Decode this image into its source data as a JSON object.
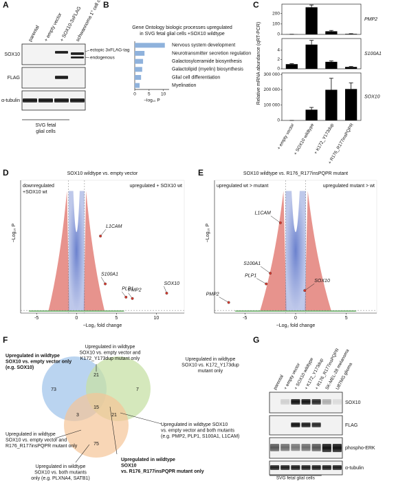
{
  "panel_letters": [
    "A",
    "B",
    "C",
    "D",
    "E",
    "F",
    "G"
  ],
  "blot_a": {
    "lanes": [
      "parental",
      "+ empty vector",
      "+ SOX10-3xFLAG",
      "schwannoma 1° cell culture"
    ],
    "rows": [
      "SOX10",
      "FLAG",
      "α-tubulin"
    ],
    "annotations": [
      "ectopic 3xFLAG-tag",
      "endogenous"
    ],
    "footer": [
      "SVG fetal",
      "glial cells"
    ]
  },
  "chart_data": [
    {
      "type": "bar",
      "title": [
        "Gene Ontology biologic processes upregulated",
        "in SVG fetal glial cells +SOX10 wildtype"
      ],
      "categories": [
        "Nervous system development",
        "Neurotransmitter secretion regulation",
        "Galactosylceramide biosynthesis",
        "Galactolipid (myelin) biosynthesis",
        "Glial cell differentiation",
        "Myelination"
      ],
      "values": [
        10.5,
        3.4,
        2.9,
        2.6,
        2.2,
        1.7
      ],
      "color": "#8fb2dc",
      "xlim": [
        0,
        12
      ],
      "xticks": [
        0,
        5,
        10
      ],
      "x_label": "−log₁₀ P"
    },
    {
      "type": "bar",
      "y_label": "Relative mRNA abundance (qRT-PCR)",
      "categories": [
        "+ empty vector",
        "+ SOX10 wildtype",
        "+ K172_Y173dup",
        "+ R176_R177insPQPR"
      ],
      "color": "#000000",
      "panels": [
        {
          "gene": "PMP2",
          "values": [
            1,
            260,
            30,
            5
          ],
          "errors": [
            0.5,
            22,
            8,
            2
          ],
          "ylim": [
            0,
            290
          ],
          "yticks": [
            0,
            100,
            200
          ]
        },
        {
          "gene": "S100A1",
          "values": [
            1,
            5.2,
            1.5,
            0.4
          ],
          "errors": [
            0.1,
            0.9,
            0.2,
            0.1
          ],
          "ylim": [
            0,
            6.5
          ],
          "yticks": [
            0,
            2,
            4
          ]
        },
        {
          "gene": "SOX10",
          "values": [
            0,
            70000,
            200000,
            205000
          ],
          "errors": [
            0,
            15000,
            75000,
            40000
          ],
          "ylim": [
            0,
            310000
          ],
          "yticks": [
            0,
            {
              "value": 100000,
              "label": "100 000"
            },
            {
              "value": 200000,
              "label": "200 000"
            },
            {
              "value": 300000,
              "label": "300 000"
            }
          ]
        }
      ]
    },
    {
      "type": "scatter",
      "title": "SOX10 wildtype vs. empty vector",
      "annotations": [
        [
          "downregulated",
          "+SOX10 wt"
        ],
        [
          "upregulated + SOX10 wt"
        ]
      ],
      "x_label": "−Log₂ fold change",
      "y_label": "−Log₁₀ P",
      "xlim": [
        -7,
        13.5
      ],
      "ylim": [
        0,
        100
      ],
      "xticks": [
        -5,
        0,
        5,
        10
      ],
      "vlines": [
        -1,
        1
      ],
      "hline": 2,
      "genes": [
        {
          "label": "L1CAM",
          "x": 3.0,
          "y": 58
        },
        {
          "label": "S100A1",
          "x": 3.6,
          "y": 22
        },
        {
          "label": "PLP1",
          "x": 6.2,
          "y": 12
        },
        {
          "label": "PMP2",
          "x": 7.0,
          "y": 11
        },
        {
          "label": "SOX10",
          "x": 11.3,
          "y": 15
        }
      ]
    },
    {
      "type": "scatter",
      "title": "SOX10 wildtype vs. R176_R177insPQPR mutant",
      "annotations": [
        [
          "upregulated wt > mutant"
        ],
        [
          "upregulated mutant > wt"
        ]
      ],
      "x_label": "−Log₂ fold change",
      "y_label": "−Log₁₀ P",
      "xlim": [
        -8,
        8
      ],
      "ylim": [
        0,
        100
      ],
      "xticks": [
        -5,
        0,
        5
      ],
      "vlines": [
        -1,
        1
      ],
      "hline": 2,
      "genes": [
        {
          "label": "L1CAM",
          "x": -1.5,
          "y": 68
        },
        {
          "label": "S100A1",
          "x": -2.5,
          "y": 30
        },
        {
          "label": "PLP1",
          "x": -2.9,
          "y": 22
        },
        {
          "label": "PMP2",
          "x": -6.6,
          "y": 8
        },
        {
          "label": "SOX10",
          "x": 0.9,
          "y": 17
        }
      ]
    }
  ],
  "venn": {
    "regions": [
      {
        "count": 73,
        "label": [
          "Upregulated in wildtype",
          "SOX10 vs. empty vector only",
          "(e.g. SOX10)"
        ]
      },
      {
        "count": 21,
        "label": [
          "Upregulated in wildtype",
          "SOX10 vs. empty vector and",
          "K172_Y173dup mutant only"
        ]
      },
      {
        "count": 7,
        "label": [
          "Upregulated in wildtype",
          "SOX10 vs. K172_Y173dup",
          "mutant only"
        ]
      },
      {
        "count": 3,
        "label": [
          "Upregulated in wildtype",
          "SOX10 vs. empty vector and",
          "R176_R177insPQPR mutant only"
        ]
      },
      {
        "count": 15,
        "label": [
          "Upregulated in wildtype SOX10",
          "vs. empty vector and both mutants",
          "(e.g. PMP2, PLP1, S100A1, L1CAM)"
        ]
      },
      {
        "count": 21,
        "label": [
          "Upregulated in wildtype",
          "SOX10 vs. both mutants",
          "only (e.g. PLXNA4, SATB1)"
        ]
      },
      {
        "count": 75,
        "label": [
          "Upregulated in wildtype",
          "SOX10",
          "vs. R176_R177insPQPR mutant only"
        ]
      }
    ]
  },
  "blot_g": {
    "lanes": [
      "parental",
      "+ empty vector",
      "+ SOX10 wildtype",
      "+ K172_Y173dup",
      "+ R176_R177insPQPR",
      "SK-MEL-28 melanoma",
      "U87MG glioma"
    ],
    "rows": [
      "SOX10",
      "FLAG",
      "phospho-ERK",
      "α-tubulin"
    ],
    "footer": "SVG fetal glial cells"
  }
}
